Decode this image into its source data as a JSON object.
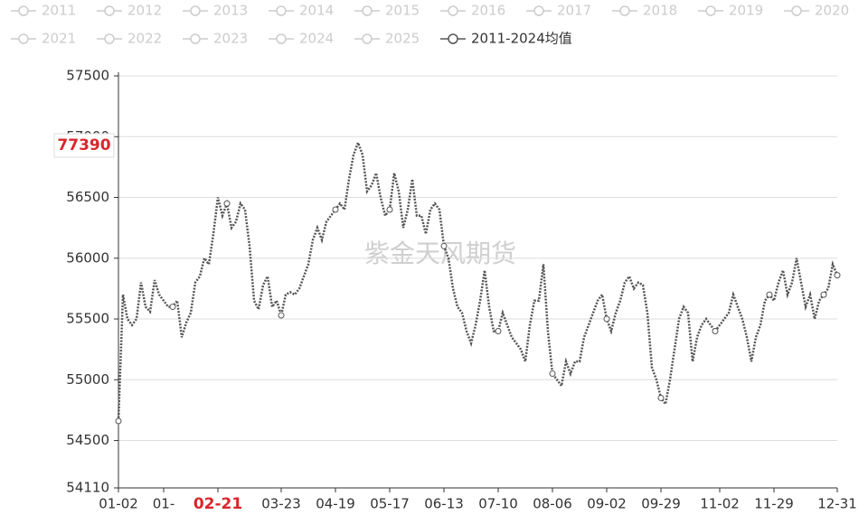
{
  "chart_data": {
    "type": "line",
    "watermark": "紫金天风期货",
    "pointer": {
      "x": "02-21",
      "y_label": "77390",
      "color": "#d9262c"
    },
    "categories": [
      "01-02",
      null,
      null,
      null,
      null,
      null,
      null,
      null,
      null,
      null,
      "01-",
      null,
      null,
      null,
      null,
      null,
      null,
      null,
      null,
      null,
      null,
      null,
      "02-21",
      null,
      null,
      null,
      null,
      null,
      null,
      null,
      null,
      null,
      null,
      null,
      null,
      null,
      "03-23",
      null,
      null,
      null,
      null,
      null,
      null,
      null,
      null,
      null,
      null,
      null,
      "04-19",
      null,
      null,
      null,
      null,
      null,
      null,
      null,
      null,
      null,
      null,
      null,
      "05-17",
      null,
      null,
      null,
      null,
      null,
      null,
      null,
      null,
      null,
      null,
      null,
      "06-13",
      null,
      null,
      null,
      null,
      null,
      null,
      null,
      null,
      null,
      null,
      null,
      "07-10",
      null,
      null,
      null,
      null,
      null,
      null,
      null,
      null,
      null,
      null,
      null,
      "08-06",
      null,
      null,
      null,
      null,
      null,
      null,
      null,
      null,
      null,
      null,
      null,
      "09-02",
      null,
      null,
      null,
      null,
      null,
      null,
      null,
      null,
      null,
      null,
      null,
      "09-29",
      null,
      null,
      null,
      null,
      null,
      null,
      null,
      null,
      null,
      null,
      null,
      null,
      "11-02",
      null,
      null,
      null,
      null,
      null,
      null,
      null,
      null,
      null,
      null,
      null,
      "11-29",
      null,
      null,
      null,
      null,
      null,
      null,
      null,
      null,
      null,
      null,
      null,
      null,
      null,
      "12-31"
    ],
    "series": [
      {
        "name": "2011",
        "visible": false
      },
      {
        "name": "2012",
        "visible": false
      },
      {
        "name": "2013",
        "visible": false
      },
      {
        "name": "2014",
        "visible": false
      },
      {
        "name": "2015",
        "visible": false
      },
      {
        "name": "2016",
        "visible": false
      },
      {
        "name": "2017",
        "visible": false
      },
      {
        "name": "2018",
        "visible": false
      },
      {
        "name": "2019",
        "visible": false
      },
      {
        "name": "2020",
        "visible": false
      },
      {
        "name": "2021",
        "visible": false
      },
      {
        "name": "2022",
        "visible": false
      },
      {
        "name": "2023",
        "visible": false
      },
      {
        "name": "2024",
        "visible": false
      },
      {
        "name": "2025",
        "visible": false
      },
      {
        "name": "2011-2024均值",
        "visible": true,
        "color": "#555555",
        "values": [
          54660,
          55700,
          55500,
          55450,
          55500,
          55800,
          55600,
          55560,
          55820,
          55700,
          55650,
          55600,
          55600,
          55650,
          55350,
          55470,
          55550,
          55800,
          55850,
          56000,
          55950,
          56200,
          56500,
          56350,
          56450,
          56250,
          56300,
          56450,
          56400,
          56100,
          55650,
          55580,
          55780,
          55850,
          55600,
          55650,
          55530,
          55700,
          55720,
          55700,
          55750,
          55850,
          55950,
          56150,
          56250,
          56150,
          56300,
          56350,
          56400,
          56450,
          56400,
          56650,
          56850,
          56950,
          56850,
          56550,
          56600,
          56700,
          56500,
          56350,
          56400,
          56700,
          56550,
          56250,
          56400,
          56650,
          56350,
          56350,
          56200,
          56400,
          56450,
          56400,
          56100,
          56000,
          55750,
          55600,
          55550,
          55400,
          55300,
          55450,
          55650,
          55900,
          55600,
          55400,
          55400,
          55550,
          55450,
          55350,
          55300,
          55250,
          55150,
          55450,
          55650,
          55650,
          55950,
          55400,
          55050,
          55000,
          54950,
          55150,
          55050,
          55150,
          55150,
          55350,
          55450,
          55550,
          55650,
          55700,
          55500,
          55400,
          55550,
          55650,
          55800,
          55850,
          55750,
          55800,
          55780,
          55550,
          55100,
          55000,
          54850,
          54800,
          55000,
          55250,
          55500,
          55600,
          55550,
          55150,
          55350,
          55450,
          55500,
          55450,
          55400,
          55450,
          55500,
          55550,
          55700,
          55600,
          55500,
          55350,
          55150,
          55350,
          55450,
          55650,
          55700,
          55650,
          55800,
          55900,
          55700,
          55800,
          56000,
          55800,
          55600,
          55700,
          55500,
          55650,
          55700,
          55750,
          55950,
          55860
        ]
      }
    ],
    "ylim": [
      54110,
      57500
    ],
    "yticks": [
      54110,
      54500,
      55000,
      55500,
      56000,
      56500,
      57000,
      57500
    ],
    "grid": true
  }
}
